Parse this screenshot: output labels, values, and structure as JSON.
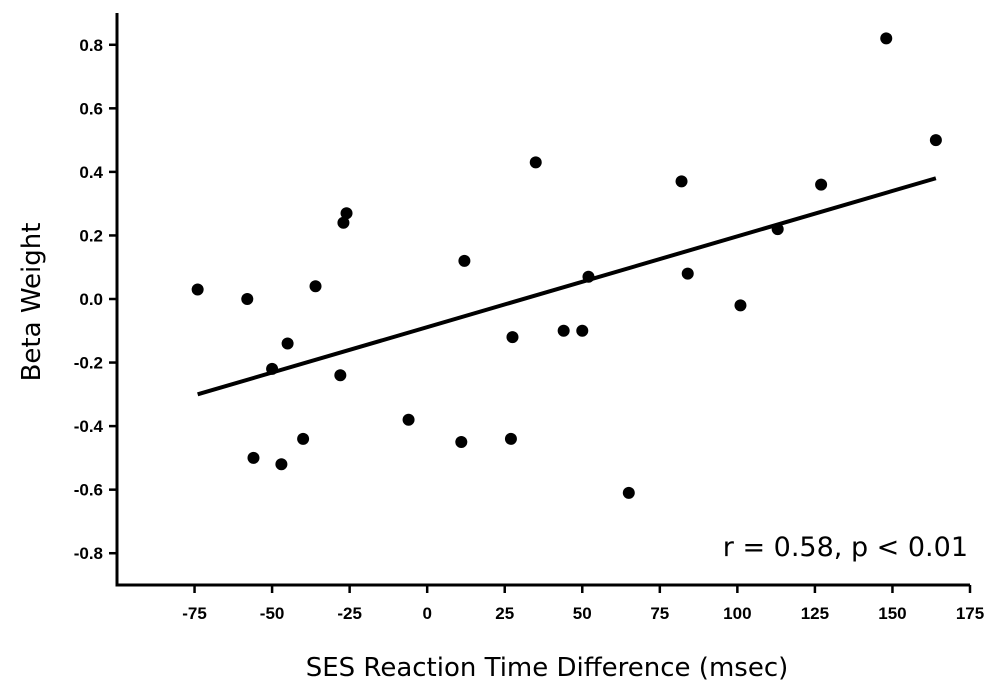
{
  "chart_data": {
    "type": "scatter",
    "title": "",
    "xlabel": "SES Reaction Time Difference (msec)",
    "ylabel": "Beta Weight",
    "xlim": [
      -100,
      175
    ],
    "ylim": [
      -0.9,
      0.9
    ],
    "x_ticks": [
      -75,
      -50,
      -25,
      0,
      25,
      50,
      75,
      100,
      125,
      150,
      175
    ],
    "y_ticks": [
      -0.8,
      -0.6,
      -0.4,
      -0.2,
      0.0,
      0.2,
      0.4,
      0.6,
      0.8
    ],
    "x_tick_labels": [
      "-75",
      "-50",
      "-25",
      "0",
      "25",
      "50",
      "75",
      "100",
      "125",
      "150",
      "175"
    ],
    "y_tick_labels": [
      "-0.8",
      "-0.6",
      "-0.4",
      "-0.2",
      "0.0",
      "0.2",
      "0.4",
      "0.6",
      "0.8"
    ],
    "grid": false,
    "points": [
      {
        "x": -74,
        "y": 0.03
      },
      {
        "x": -58,
        "y": 0.0
      },
      {
        "x": -56,
        "y": -0.5
      },
      {
        "x": -50,
        "y": -0.22
      },
      {
        "x": -47,
        "y": -0.52
      },
      {
        "x": -45,
        "y": -0.14
      },
      {
        "x": -40,
        "y": -0.44
      },
      {
        "x": -36,
        "y": 0.04
      },
      {
        "x": -28,
        "y": -0.24
      },
      {
        "x": -27,
        "y": 0.24
      },
      {
        "x": -26,
        "y": 0.27
      },
      {
        "x": -6,
        "y": -0.38
      },
      {
        "x": 11,
        "y": -0.45
      },
      {
        "x": 12,
        "y": 0.12
      },
      {
        "x": 27,
        "y": -0.44
      },
      {
        "x": 27.5,
        "y": -0.12
      },
      {
        "x": 35,
        "y": 0.43
      },
      {
        "x": 44,
        "y": -0.1
      },
      {
        "x": 50,
        "y": -0.1
      },
      {
        "x": 52,
        "y": 0.07
      },
      {
        "x": 65,
        "y": -0.61
      },
      {
        "x": 82,
        "y": 0.37
      },
      {
        "x": 84,
        "y": 0.08
      },
      {
        "x": 101,
        "y": -0.02
      },
      {
        "x": 113,
        "y": 0.22
      },
      {
        "x": 127,
        "y": 0.36
      },
      {
        "x": 148,
        "y": 0.82
      },
      {
        "x": 164,
        "y": 0.5
      }
    ],
    "trend_line": {
      "x": [
        -74,
        164
      ],
      "y": [
        -0.3,
        0.38
      ]
    },
    "annotation": "r = 0.58, p < 0.01"
  }
}
